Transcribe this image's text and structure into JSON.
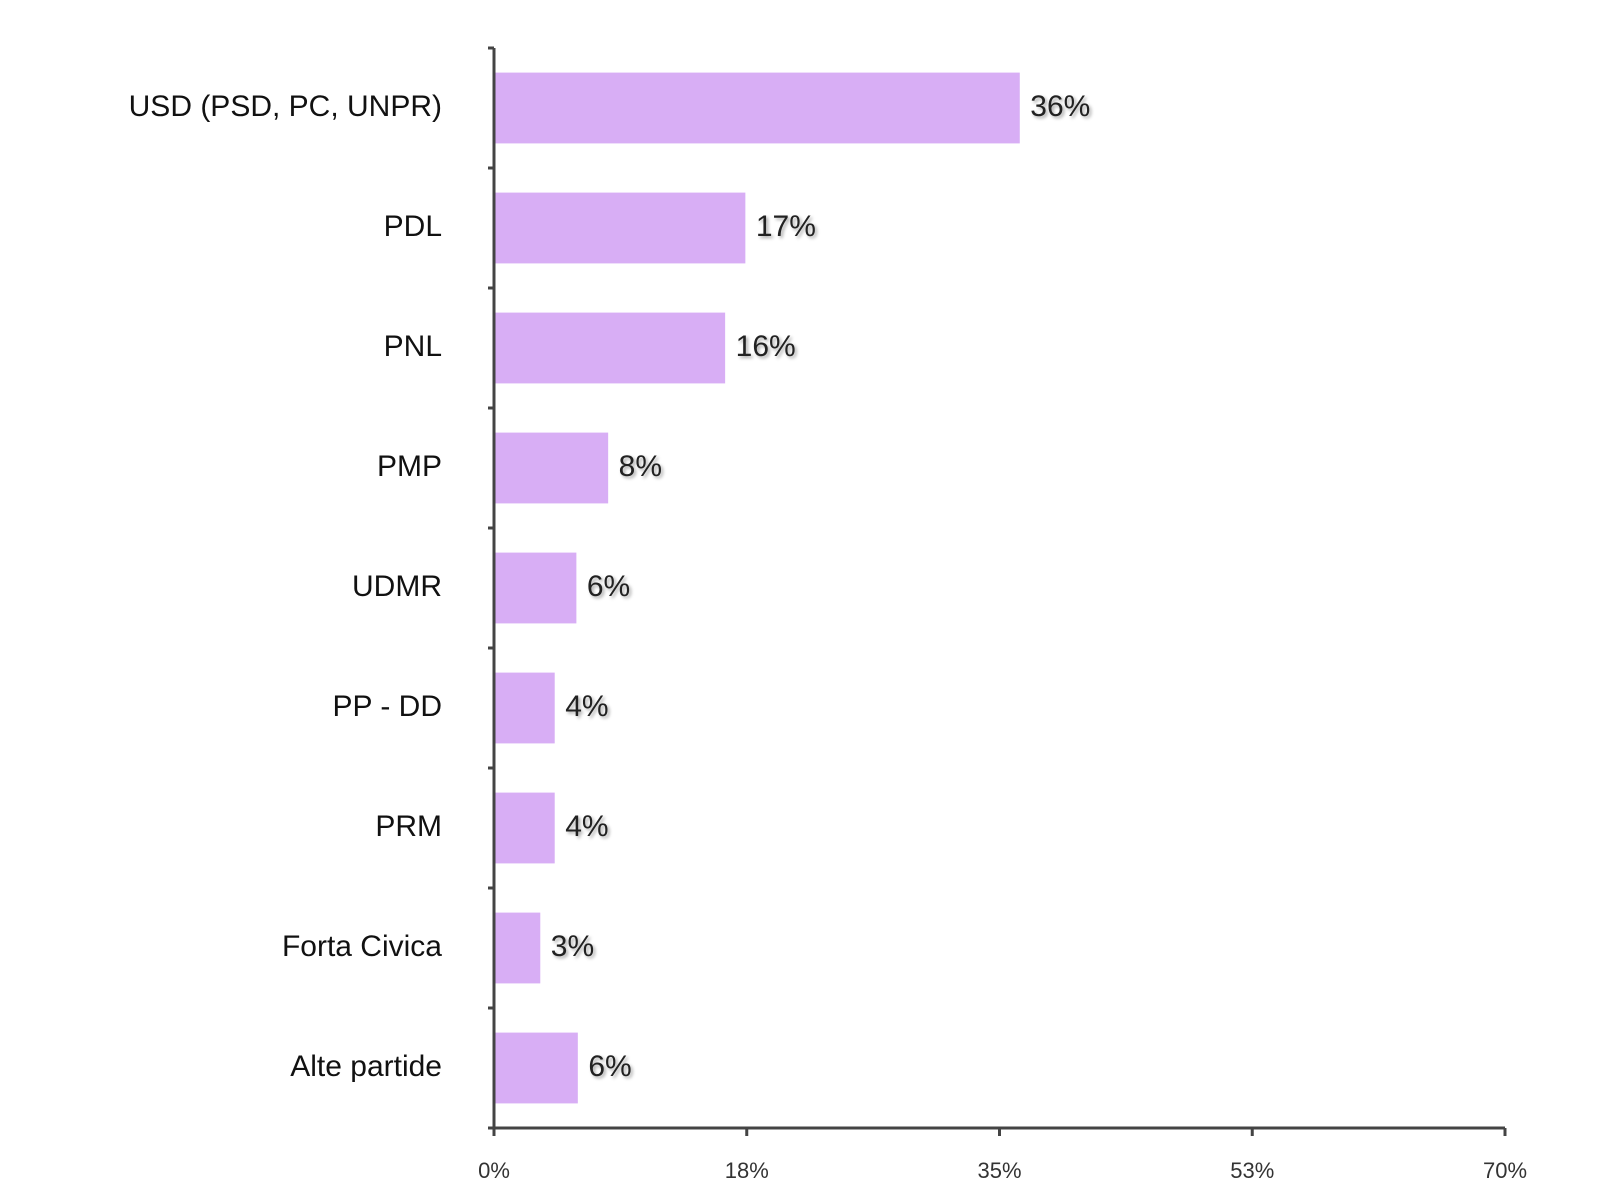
{
  "chart_data": {
    "type": "bar",
    "orientation": "horizontal",
    "categories": [
      "USD (PSD, PC, UNPR)",
      "PDL",
      "PNL",
      "PMP",
      "UDMR",
      "PP - DD",
      "PRM",
      "Forta Civica",
      "Alte partide"
    ],
    "values": [
      36.3,
      17.3,
      15.9,
      7.8,
      5.6,
      4.1,
      4.1,
      3.1,
      5.7
    ],
    "value_labels": [
      "36%",
      "17%",
      "16%",
      "8%",
      "6%",
      "4%",
      "4%",
      "3%",
      "6%"
    ],
    "color": "#d8aef5",
    "xlim": [
      0,
      70
    ],
    "xticks": [
      {
        "value": 0,
        "label": "0%"
      },
      {
        "value": 17.5,
        "label": "18%"
      },
      {
        "value": 35,
        "label": "35%"
      },
      {
        "value": 52.5,
        "label": "53%"
      },
      {
        "value": 70,
        "label": "70%"
      }
    ],
    "grid": false
  }
}
